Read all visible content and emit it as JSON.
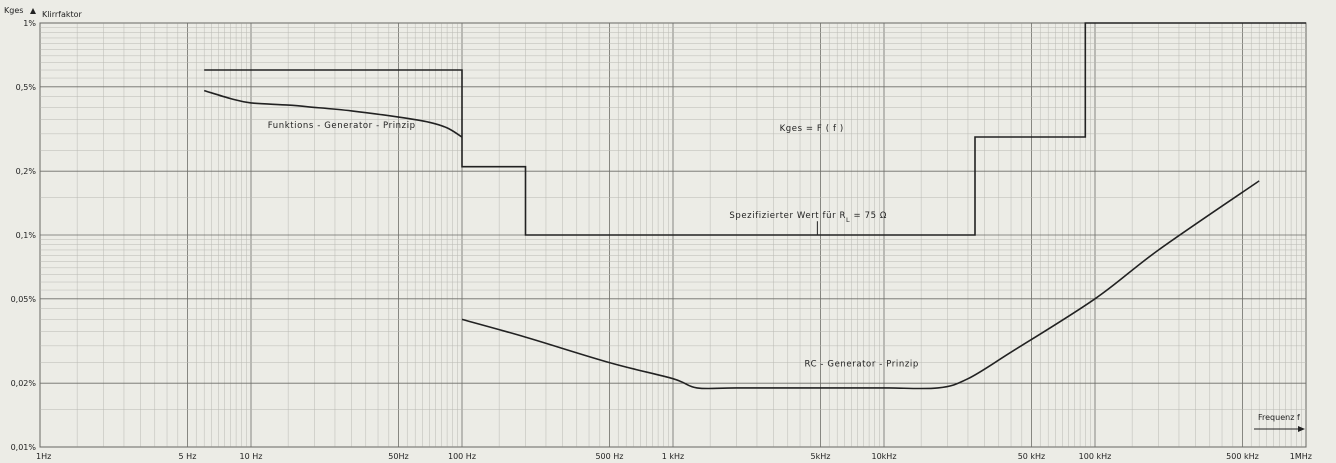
{
  "chart_data": {
    "type": "line",
    "y_axis_title": "Kges",
    "y_axis_subtitle": "Klirrfaktor",
    "x_axis_title": "Frequenz f",
    "x_scale": "log",
    "y_scale": "log",
    "xlim": [
      1,
      1000000
    ],
    "ylim": [
      0.01,
      1
    ],
    "grid": true,
    "x_ticks": [
      {
        "value": 1,
        "label": "1Hz"
      },
      {
        "value": 5,
        "label": "5 Hz"
      },
      {
        "value": 10,
        "label": "10 Hz"
      },
      {
        "value": 50,
        "label": "50Hz"
      },
      {
        "value": 100,
        "label": "100 Hz"
      },
      {
        "value": 500,
        "label": "500 Hz"
      },
      {
        "value": 1000,
        "label": "1 kHz"
      },
      {
        "value": 5000,
        "label": "5kHz"
      },
      {
        "value": 10000,
        "label": "10kHz"
      },
      {
        "value": 50000,
        "label": "50 kHz"
      },
      {
        "value": 100000,
        "label": "100 kHz"
      },
      {
        "value": 500000,
        "label": "500 kHz"
      },
      {
        "value": 1000000,
        "label": "1MHz"
      }
    ],
    "y_ticks": [
      {
        "value": 1,
        "label": "1%"
      },
      {
        "value": 0.5,
        "label": "0,5%"
      },
      {
        "value": 0.2,
        "label": "0,2%"
      },
      {
        "value": 0.1,
        "label": "0,1%"
      },
      {
        "value": 0.05,
        "label": "0,05%"
      },
      {
        "value": 0.02,
        "label": "0,02%"
      },
      {
        "value": 0.01,
        "label": "0,01%"
      }
    ],
    "annotations": [
      {
        "text": "Funktions - Generator - Prinzip",
        "x": 12,
        "y": 0.32
      },
      {
        "text": "Kges = F ( f )",
        "x": 3200,
        "y": 0.31
      },
      {
        "text": "Spezifizierter Wert für R",
        "sub": "L",
        "suffix": " = 75 Ω",
        "x": 1850,
        "y": 0.12
      },
      {
        "text": "RC - Generator - Prinzip",
        "x": 4200,
        "y": 0.024
      }
    ],
    "series": [
      {
        "style": "step",
        "points": [
          [
            6,
            0.6
          ],
          [
            100,
            0.6
          ],
          [
            100,
            0.21
          ],
          [
            200,
            0.21
          ],
          [
            200,
            0.1
          ],
          [
            27000,
            0.1
          ],
          [
            27000,
            0.29
          ],
          [
            90000,
            0.29
          ],
          [
            90000,
            1.0
          ],
          [
            1000000,
            1.0
          ]
        ]
      },
      {
        "style": "smooth",
        "points": [
          [
            6,
            0.48
          ],
          [
            8,
            0.44
          ],
          [
            10,
            0.42
          ],
          [
            15,
            0.41
          ],
          [
            20,
            0.4
          ],
          [
            30,
            0.385
          ],
          [
            50,
            0.36
          ],
          [
            70,
            0.34
          ],
          [
            85,
            0.32
          ],
          [
            100,
            0.29
          ]
        ]
      },
      {
        "style": "smooth",
        "points": [
          [
            100,
            0.04
          ],
          [
            200,
            0.033
          ],
          [
            500,
            0.025
          ],
          [
            1000,
            0.021
          ],
          [
            1300,
            0.019
          ],
          [
            2000,
            0.019
          ],
          [
            5000,
            0.019
          ],
          [
            10000,
            0.019
          ],
          [
            18000,
            0.019
          ],
          [
            25000,
            0.021
          ],
          [
            40000,
            0.028
          ],
          [
            100000,
            0.05
          ],
          [
            200000,
            0.085
          ],
          [
            600000,
            0.18
          ]
        ]
      }
    ]
  }
}
